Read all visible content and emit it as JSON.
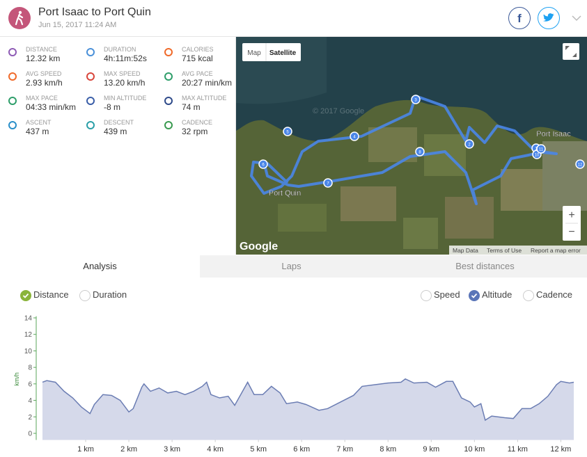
{
  "header": {
    "title": "Port Isaac to Port Quin",
    "date": "Jun 15, 2017 11:24 AM"
  },
  "stats": [
    {
      "label": "DISTANCE",
      "value": "12.32 km"
    },
    {
      "label": "DURATION",
      "value": "4h:11m:52s"
    },
    {
      "label": "CALORIES",
      "value": "715 kcal"
    },
    {
      "label": "AVG SPEED",
      "value": "2.93 km/h"
    },
    {
      "label": "MAX SPEED",
      "value": "13.20 km/h"
    },
    {
      "label": "AVG PACE",
      "value": "20:27 min/km"
    },
    {
      "label": "MAX PACE",
      "value": "04:33 min/km"
    },
    {
      "label": "MIN ALTITUDE",
      "value": "-8 m"
    },
    {
      "label": "MAX ALTITUDE",
      "value": "74 m"
    },
    {
      "label": "ASCENT",
      "value": "437 m"
    },
    {
      "label": "DESCENT",
      "value": "439 m"
    },
    {
      "label": "CADENCE",
      "value": "32 rpm"
    }
  ],
  "map": {
    "buttons": [
      "Map",
      "Satellite"
    ],
    "places": [
      "Port Quin",
      "Port Isaac"
    ],
    "watermark": "© 2017 Google",
    "logo": "Google",
    "footer": [
      "Map Data",
      "Terms of Use",
      "Report a map error"
    ],
    "markers": [
      "1",
      "2",
      "3",
      "4",
      "5",
      "6",
      "7",
      "8",
      "10",
      "11",
      "12"
    ],
    "zoom": [
      "+",
      "−"
    ]
  },
  "tabs": [
    "Analysis",
    "Laps",
    "Best distances"
  ],
  "x_options": [
    {
      "label": "Distance",
      "checked": true
    },
    {
      "label": "Duration",
      "checked": false
    }
  ],
  "y_options": [
    {
      "label": "Speed",
      "checked": false
    },
    {
      "label": "Altitude",
      "checked": true
    },
    {
      "label": "Cadence",
      "checked": false
    }
  ],
  "chart_data": {
    "type": "area",
    "y_axis_label": "km/h",
    "color": "#6b7db3",
    "fill": "#d5d9ea",
    "x": [
      0,
      0.1,
      0.3,
      0.5,
      0.7,
      0.9,
      1.1,
      1.2,
      1.4,
      1.6,
      1.8,
      2.0,
      2.1,
      2.3,
      2.35,
      2.5,
      2.7,
      2.9,
      3.1,
      3.3,
      3.5,
      3.7,
      3.8,
      3.9,
      4.1,
      4.3,
      4.45,
      4.6,
      4.75,
      4.9,
      5.1,
      5.3,
      5.5,
      5.65,
      5.9,
      6.1,
      6.4,
      6.6,
      6.9,
      7.2,
      7.4,
      7.7,
      8.0,
      8.3,
      8.4,
      8.6,
      8.9,
      9.1,
      9.35,
      9.5,
      9.7,
      9.9,
      10.0,
      10.15,
      10.25,
      10.4,
      10.7,
      10.9,
      11.1,
      11.3,
      11.5,
      11.7,
      11.9,
      12.0,
      12.2,
      12.3
    ],
    "values": [
      6.2,
      6.4,
      6.2,
      5.1,
      4.3,
      3.2,
      2.4,
      3.5,
      4.7,
      4.6,
      4.0,
      2.6,
      3.0,
      5.6,
      6.0,
      5.1,
      5.5,
      4.9,
      5.1,
      4.7,
      5.1,
      5.7,
      6.2,
      4.7,
      4.3,
      4.5,
      3.4,
      4.8,
      6.2,
      4.7,
      4.7,
      5.7,
      4.9,
      3.6,
      3.8,
      3.5,
      2.8,
      3.0,
      3.8,
      4.6,
      5.7,
      5.9,
      6.1,
      6.2,
      6.6,
      6.1,
      6.2,
      5.6,
      6.3,
      6.3,
      4.3,
      3.8,
      3.2,
      3.6,
      1.6,
      2.1,
      1.9,
      1.8,
      3.0,
      3.0,
      3.6,
      4.5,
      5.9,
      6.3,
      6.1,
      6.2
    ],
    "xlim": [
      0,
      12.3
    ],
    "xticks": [
      {
        "value": 1,
        "label": "1 km"
      },
      {
        "value": 2,
        "label": "2 km"
      },
      {
        "value": 3,
        "label": "3 km"
      },
      {
        "value": 4,
        "label": "4 km"
      },
      {
        "value": 5,
        "label": "5 km"
      },
      {
        "value": 6,
        "label": "6 km"
      },
      {
        "value": 7,
        "label": "7 km"
      },
      {
        "value": 8,
        "label": "8 km"
      },
      {
        "value": 9,
        "label": "9 km"
      },
      {
        "value": 10,
        "label": "10 km"
      },
      {
        "value": 11,
        "label": "11 km"
      },
      {
        "value": 12,
        "label": "12 km"
      }
    ],
    "ylim": [
      -0.8,
      14.2
    ],
    "yticks": [
      0,
      2,
      4,
      6,
      8,
      10,
      12,
      14
    ]
  }
}
